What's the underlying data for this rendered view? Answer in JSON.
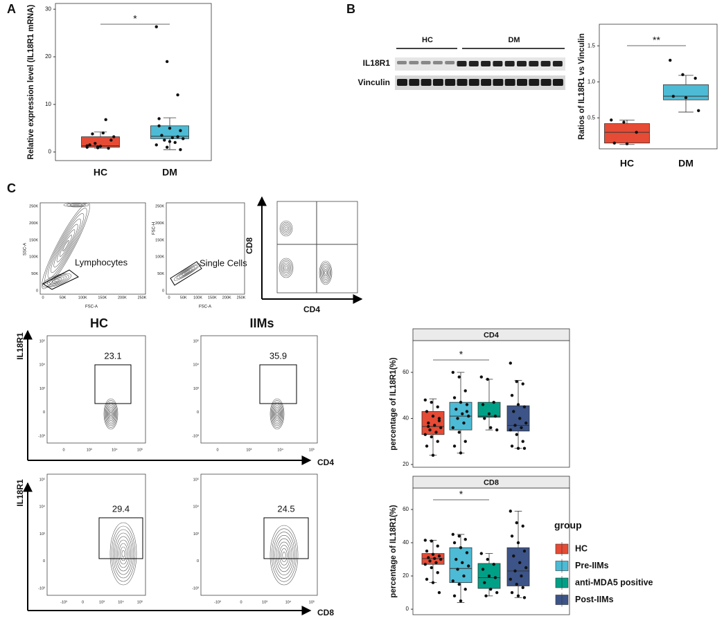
{
  "chart_data": [
    {
      "type": "box",
      "panel": "A",
      "ylabel": "Relative expression level (IL18R1 mRNA)",
      "categories": [
        "HC",
        "DM"
      ],
      "colors": [
        "#e64b35",
        "#4dbbd5"
      ],
      "ylim": [
        -1.8,
        31.2
      ],
      "yticks": [
        0,
        10,
        20,
        30
      ],
      "boxes": [
        {
          "min": 0.8,
          "q1": 1.0,
          "median": 1.3,
          "q3": 3.2,
          "max": 4.2,
          "points": [
            1,
            1.1,
            0.8,
            1.5,
            1.2,
            2.5,
            3.8,
            4,
            3.2,
            1.8,
            6.8,
            1.3,
            0.9
          ]
        },
        {
          "min": 0.5,
          "q1": 2.8,
          "median": 3.3,
          "q3": 5.5,
          "max": 7.2,
          "points": [
            26.3,
            19,
            12,
            7,
            5,
            4.5,
            3.5,
            3,
            2.8,
            2.5,
            2,
            1.5,
            1,
            3.2,
            5.5,
            2.2,
            0.5
          ]
        }
      ],
      "significance": {
        "text": "*",
        "between": [
          "HC",
          "DM"
        ]
      }
    },
    {
      "type": "box",
      "panel": "B",
      "ylabel": "Ratios of IL18R1 vs Vinculin",
      "categories": [
        "HC",
        "DM"
      ],
      "colors": [
        "#e64b35",
        "#4dbbd5"
      ],
      "ylim": [
        0.07,
        1.8
      ],
      "yticks": [
        0.5,
        {
          "value": 1,
          "label": "1.0"
        },
        1.5
      ],
      "boxes": [
        {
          "min": 0.13,
          "q1": 0.15,
          "median": 0.3,
          "q3": 0.42,
          "max": 0.47,
          "points": [
            0.47,
            0.44,
            0.3,
            0.15,
            0.14
          ]
        },
        {
          "min": 0.58,
          "q1": 0.75,
          "median": 0.8,
          "q3": 0.96,
          "max": 1.09,
          "points": [
            1.3,
            1.1,
            1.05,
            0.8,
            0.78,
            0.6
          ]
        }
      ],
      "significance": {
        "text": "**",
        "between": [
          "HC",
          "DM"
        ]
      }
    },
    {
      "type": "box",
      "title": "CD4",
      "ylabel": "percentage of IL18R1(%)",
      "categories": [
        "HC",
        "Pre-IIMs",
        "anti-MDA5 positive",
        "Post-IIMs"
      ],
      "colors": [
        "#e64b35",
        "#4dbbd5",
        "#00a087",
        "#3c5488"
      ],
      "ylim": [
        18.8,
        73.8
      ],
      "yticks": [
        20,
        40,
        60
      ],
      "boxes": [
        {
          "min": 24,
          "q1": 33,
          "median": 36.5,
          "q3": 43,
          "max": 48.5,
          "points": [
            48,
            47,
            45,
            43,
            41,
            40,
            38,
            37,
            36,
            35,
            34,
            33,
            32,
            30,
            28,
            24,
            39,
            36.5
          ]
        },
        {
          "min": 25,
          "q1": 35,
          "median": 41,
          "q3": 47,
          "max": 60,
          "points": [
            60,
            58,
            52,
            49,
            47,
            46,
            44,
            42,
            41,
            40,
            38,
            36,
            34,
            30,
            28,
            25,
            43
          ]
        },
        {
          "min": 35,
          "q1": 40.5,
          "median": 41,
          "q3": 47,
          "max": 57,
          "points": [
            58,
            57,
            47,
            46,
            42,
            41,
            40,
            36,
            35
          ]
        },
        {
          "min": 27,
          "q1": 34.5,
          "median": 37,
          "q3": 45.5,
          "max": 56.5,
          "points": [
            64,
            56,
            55,
            50,
            46,
            45,
            43,
            40,
            38,
            37,
            36,
            35,
            33,
            30,
            28,
            27,
            27
          ]
        }
      ],
      "significance": {
        "text": "*",
        "between": [
          "HC",
          "anti-MDA5 positive"
        ]
      }
    },
    {
      "type": "box",
      "title": "CD8",
      "ylabel": "percentage of IL18R1(%)",
      "categories": [
        "HC",
        "Pre-IIMs",
        "anti-MDA5 positive",
        "Post-IIMs"
      ],
      "colors": [
        "#e64b35",
        "#4dbbd5",
        "#00a087",
        "#3c5488"
      ],
      "ylim": [
        -3.3,
        72.9
      ],
      "yticks": [
        0,
        20,
        40,
        60
      ],
      "boxes": [
        {
          "min": 16,
          "q1": 27,
          "median": 30.5,
          "q3": 33.5,
          "max": 41.5,
          "points": [
            41.5,
            41,
            38,
            35,
            33,
            32,
            31,
            30.5,
            30,
            29,
            28,
            27,
            25,
            22,
            18,
            16,
            10
          ]
        },
        {
          "min": 4,
          "q1": 16,
          "median": 24.5,
          "q3": 37,
          "max": 45,
          "points": [
            45,
            44,
            42,
            40,
            37,
            34,
            30,
            28,
            26,
            24,
            20,
            17,
            15,
            12,
            8,
            5
          ]
        },
        {
          "min": 8,
          "q1": 12.5,
          "median": 19,
          "q3": 27.5,
          "max": 33.5,
          "points": [
            33.5,
            30,
            27,
            24,
            20,
            19,
            16,
            12,
            10,
            8
          ]
        },
        {
          "min": 7,
          "q1": 14,
          "median": 23,
          "q3": 37,
          "max": 59,
          "points": [
            59,
            52,
            50,
            44,
            40,
            35,
            32,
            28,
            25,
            23,
            20,
            18,
            15,
            13,
            10,
            8,
            7
          ]
        }
      ],
      "significance": {
        "text": "*",
        "between": [
          "HC",
          "anti-MDA5 positive"
        ]
      },
      "legend_title": "group"
    }
  ],
  "blot": {
    "groups": [
      "HC",
      "DM"
    ],
    "rows": [
      "IL18R1",
      "Vinculin"
    ]
  },
  "flow": {
    "panel": "C",
    "gating": [
      {
        "ylabel": "SSC-A",
        "xlabel": "FSC-A",
        "gate": "Lymphocytes",
        "yticks": [
          "0",
          "50K",
          "100K",
          "150K",
          "200K",
          "250K"
        ],
        "xticks": [
          "0",
          "50K",
          "100K",
          "150K",
          "200K",
          "250K"
        ]
      },
      {
        "ylabel": "FSC-H",
        "xlabel": "FSC-A",
        "gate": "Single Cells",
        "yticks": [
          "0",
          "50K",
          "100K",
          "150K",
          "200K",
          "250K"
        ],
        "xticks": [
          "0",
          "50K",
          "100K",
          "150K",
          "200K",
          "250K"
        ]
      },
      {
        "ylabel": "CD8",
        "xlabel": "CD4"
      }
    ],
    "columns": [
      "HC",
      "IIMs"
    ],
    "rows": [
      {
        "ylabel": "IL18R1",
        "xlabel": "CD4",
        "gates": [
          "23.1",
          "35.9"
        ],
        "yticks": [
          "10⁵",
          "10⁴",
          "10³",
          "0",
          "-10³"
        ],
        "xticks": [
          "0",
          "10³",
          "10⁴",
          "10⁵"
        ]
      },
      {
        "ylabel": "IL18R1",
        "xlabel": "CD8",
        "gates": [
          "29.4",
          "24.5"
        ],
        "yticks": [
          "10⁵",
          "10⁴",
          "10³",
          "0",
          "-10³"
        ],
        "xticks": [
          "-10³",
          "0",
          "10³",
          "10⁴",
          "10⁵"
        ]
      }
    ]
  }
}
